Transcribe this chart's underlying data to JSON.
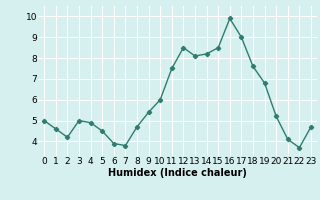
{
  "x": [
    0,
    1,
    2,
    3,
    4,
    5,
    6,
    7,
    8,
    9,
    10,
    11,
    12,
    13,
    14,
    15,
    16,
    17,
    18,
    19,
    20,
    21,
    22,
    23
  ],
  "y": [
    5.0,
    4.6,
    4.2,
    5.0,
    4.9,
    4.5,
    3.9,
    3.8,
    4.7,
    5.4,
    6.0,
    7.5,
    8.5,
    8.1,
    8.2,
    8.5,
    9.9,
    9.0,
    7.6,
    6.8,
    5.2,
    4.1,
    3.7,
    4.7
  ],
  "line_color": "#2e7d6e",
  "marker": "D",
  "marker_size": 2.2,
  "bg_color": "#d6f0ef",
  "grid_color": "#ffffff",
  "xlabel": "Humidex (Indice chaleur)",
  "ylim": [
    3.3,
    10.5
  ],
  "xlim": [
    -0.5,
    23.5
  ],
  "yticks": [
    4,
    5,
    6,
    7,
    8,
    9,
    10
  ],
  "xticks": [
    0,
    1,
    2,
    3,
    4,
    5,
    6,
    7,
    8,
    9,
    10,
    11,
    12,
    13,
    14,
    15,
    16,
    17,
    18,
    19,
    20,
    21,
    22,
    23
  ],
  "xlabel_fontsize": 7,
  "tick_fontsize": 6.5
}
